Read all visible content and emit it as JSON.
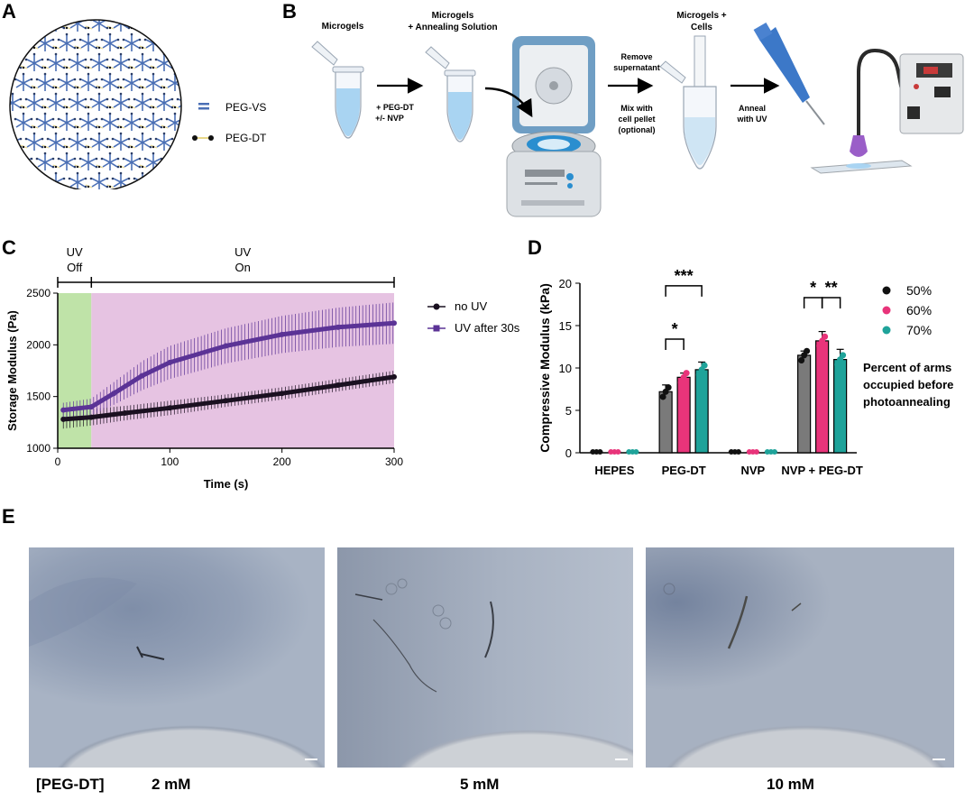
{
  "panels": {
    "A": {
      "letter": "A",
      "legend": [
        {
          "label": "PEG-VS",
          "color": "#4a6fb5"
        },
        {
          "label": "PEG-DT",
          "color": "#111111"
        }
      ]
    },
    "B": {
      "letter": "B",
      "steps": {
        "s1": "Microgels",
        "s2a": "Microgels",
        "s2b": "+ Annealing Solution",
        "a1a": "+ PEG-DT",
        "a1b": "+/- NVP",
        "a2a": "Remove",
        "a2b": "supernatant",
        "a2c": "Mix with",
        "a2d": "cell pellet",
        "a2e": "(optional)",
        "s3a": "Microgels +",
        "s3b": "Cells",
        "a3a": "Anneal",
        "a3b": "with UV"
      }
    },
    "C": {
      "letter": "C"
    },
    "D": {
      "letter": "D"
    },
    "E": {
      "letter": "E",
      "row_label": "[PEG-DT]",
      "conditions": [
        "2 mM",
        "5 mM",
        "10 mM"
      ]
    }
  },
  "chart_data": [
    {
      "id": "C",
      "type": "line",
      "xlabel": "Time (s)",
      "ylabel": "Storage Modulus (Pa)",
      "xlim": [
        0,
        300
      ],
      "ylim": [
        1000,
        2500
      ],
      "xticks": [
        0,
        100,
        200,
        300
      ],
      "yticks": [
        1000,
        1500,
        2000,
        2500
      ],
      "regions": [
        {
          "label_top": "UV",
          "label_bottom": "Off",
          "x": [
            0,
            30
          ],
          "color": "#bfe3a8"
        },
        {
          "label_top": "UV",
          "label_bottom": "On",
          "x": [
            30,
            300
          ],
          "color": "#e6c3e2"
        }
      ],
      "legend_position": "right",
      "series": [
        {
          "name": "no UV",
          "color": "#1a1020",
          "x": [
            5,
            30,
            60,
            100,
            150,
            200,
            250,
            300
          ],
          "y": [
            1280,
            1300,
            1340,
            1390,
            1460,
            1530,
            1610,
            1690
          ],
          "err": [
            90,
            80,
            70,
            70,
            60,
            60,
            60,
            60
          ]
        },
        {
          "name": "UV after 30s",
          "color": "#5b3396",
          "x": [
            5,
            30,
            50,
            75,
            100,
            150,
            200,
            250,
            300
          ],
          "y": [
            1370,
            1400,
            1530,
            1700,
            1830,
            1990,
            2100,
            2170,
            2210
          ],
          "err": [
            70,
            80,
            110,
            140,
            160,
            170,
            180,
            190,
            200
          ]
        }
      ]
    },
    {
      "id": "D",
      "type": "bar",
      "ylabel": "Compressive Modulus (kPa)",
      "ylim": [
        0,
        20
      ],
      "yticks": [
        0,
        5,
        10,
        15,
        20
      ],
      "categories": [
        "HEPES",
        "PEG-DT",
        "NVP",
        "NVP + PEG-DT"
      ],
      "legend_title": "Percent of arms occupied before photoannealing",
      "series": [
        {
          "name": "50%",
          "color": "#7a7a7a",
          "point_color": "#111111",
          "values": [
            0,
            7.2,
            0,
            11.5
          ],
          "err": [
            0,
            0.8,
            0,
            0.5
          ]
        },
        {
          "name": "60%",
          "color": "#e8347a",
          "point_color": "#e8347a",
          "values": [
            0,
            8.9,
            0,
            13.2
          ],
          "err": [
            0,
            0.5,
            0,
            1.1
          ]
        },
        {
          "name": "70%",
          "color": "#1fa39a",
          "point_color": "#1fa39a",
          "values": [
            0,
            9.8,
            0,
            11.0
          ],
          "err": [
            0,
            0.9,
            0,
            1.2
          ]
        }
      ],
      "significance": [
        {
          "label": "*",
          "category": "PEG-DT",
          "from": "50%",
          "to": "60%"
        },
        {
          "label": "***",
          "category": "PEG-DT",
          "from": "50%",
          "to": "70%"
        },
        {
          "label": "*",
          "category": "NVP + PEG-DT",
          "from": "50%",
          "to": "60%"
        },
        {
          "label": "**",
          "category": "NVP + PEG-DT",
          "from": "60%",
          "to": "70%"
        }
      ]
    }
  ]
}
